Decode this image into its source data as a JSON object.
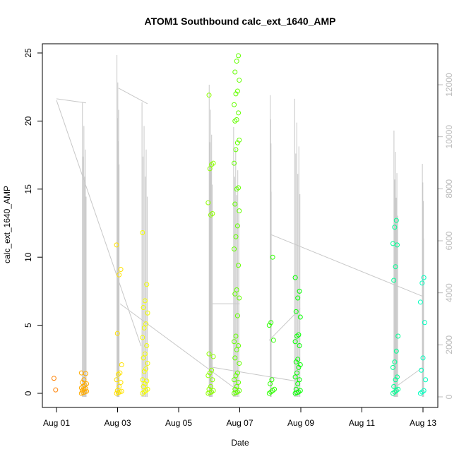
{
  "chart_data": {
    "type": "scatter",
    "title": "ATOM1 Southbound calc_ext_1640_AMP",
    "xlabel": "Date",
    "ylabel": "calc_ext_1640_AMP",
    "xlim_day_of_august": [
      0.55,
      13.35
    ],
    "ylim": [
      -0.8,
      25.5
    ],
    "y2lim": [
      -300,
      13500
    ],
    "x_ticks": [
      {
        "day": 1,
        "label": "Aug 01"
      },
      {
        "day": 3,
        "label": "Aug 03"
      },
      {
        "day": 5,
        "label": "Aug 05"
      },
      {
        "day": 7,
        "label": "Aug 07"
      },
      {
        "day": 9,
        "label": "Aug 09"
      },
      {
        "day": 11,
        "label": "Aug 11"
      },
      {
        "day": 13,
        "label": "Aug 13"
      }
    ],
    "y_ticks": [
      "0",
      "5",
      "10",
      "15",
      "20",
      "25"
    ],
    "y2_ticks": [
      "0",
      "2000",
      "4000",
      "6000",
      "8000",
      "10000",
      "12000"
    ],
    "grid": false,
    "legend": "none",
    "point_colors": "rainbow by time, orange (Aug 01) to cyan (Aug 13)",
    "line_color": "#c8c8c8",
    "point_groups": [
      {
        "day": 1.0,
        "values": [
          1.1,
          0.25
        ]
      },
      {
        "day": 1.9,
        "values": [
          0,
          0.05,
          0.1,
          0.15,
          0.2,
          0.3,
          0.35,
          0.4,
          0.5,
          0.6,
          0.7,
          0.8,
          1.0,
          1.45,
          1.5
        ]
      },
      {
        "day": 3.05,
        "values": [
          0,
          0.05,
          0.1,
          0.15,
          0.2,
          0.5,
          0.8,
          1.0,
          1.4,
          1.5,
          2.1,
          4.4,
          8.7,
          9.1,
          10.9
        ]
      },
      {
        "day": 3.9,
        "values": [
          0,
          0.1,
          0.2,
          0.3,
          0.5,
          0.7,
          0.9,
          1.0,
          1.6,
          1.8,
          2.2,
          2.6,
          2.9,
          3.5,
          4.1,
          4.8,
          5.1,
          5.9,
          6.3,
          6.8,
          8.0,
          11.8
        ]
      },
      {
        "day": 6.05,
        "values": [
          0,
          0.05,
          0.1,
          0.2,
          0.3,
          0.5,
          1.0,
          1.3,
          1.5,
          1.7,
          2.7,
          2.9,
          13.1,
          13.2,
          14.0,
          16.5,
          16.8,
          16.9,
          21.9
        ]
      },
      {
        "day": 6.9,
        "values": [
          0,
          0.05,
          0.1,
          0.2,
          0.3,
          0.5,
          0.8,
          1.0,
          1.3,
          1.5,
          2.2,
          2.6,
          3.2,
          3.5,
          3.8,
          4.2,
          5.7,
          7.0,
          7.3,
          7.6,
          9.4,
          10.6,
          11.5,
          12.3,
          13.4,
          13.9,
          15.0,
          15.1,
          16.9,
          17.9,
          18.4,
          18.6,
          20.0,
          20.1,
          20.6,
          21.2,
          22.0,
          22.2,
          23.0,
          23.6,
          24.4,
          24.8
        ]
      },
      {
        "day": 8.05,
        "values": [
          0,
          0.1,
          0.2,
          0.3,
          0.7,
          1.0,
          3.9,
          5.0,
          5.2,
          10.0
        ]
      },
      {
        "day": 8.9,
        "values": [
          0,
          0.05,
          0.1,
          0.2,
          0.3,
          0.7,
          1.0,
          1.2,
          1.5,
          1.9,
          2.1,
          2.3,
          2.5,
          3.5,
          3.8,
          4.2,
          4.3,
          5.6,
          6.0,
          7.0,
          7.5,
          8.5
        ]
      },
      {
        "day": 12.1,
        "values": [
          0,
          0.1,
          0.2,
          0.3,
          0.5,
          1.0,
          1.2,
          1.9,
          2.3,
          3.1,
          4.2,
          8.3,
          9.3,
          10.9,
          11.0,
          12.2,
          12.7
        ]
      },
      {
        "day": 13.0,
        "values": [
          0,
          0.1,
          0.2,
          1.0,
          1.7,
          2.6,
          5.2,
          6.7,
          8.1,
          8.5
        ]
      }
    ],
    "line_spikes_right_axis": [
      {
        "day_from": 1.85,
        "day_to": 1.97,
        "top": 11320,
        "bottom": 0
      },
      {
        "day_from": 2.98,
        "day_to": 3.05,
        "top": 13140,
        "bottom": 0
      },
      {
        "day_from": 3.8,
        "day_to": 3.97,
        "top": 11320,
        "bottom": 0
      },
      {
        "day_from": 6.0,
        "day_to": 6.1,
        "top": 12000,
        "bottom": 0
      },
      {
        "day_from": 6.8,
        "day_to": 6.97,
        "top": 10370,
        "bottom": 0
      },
      {
        "day_from": 8.0,
        "day_to": 8.03,
        "top": 11600,
        "bottom": 0
      },
      {
        "day_from": 8.8,
        "day_to": 8.97,
        "top": 11460,
        "bottom": 0
      },
      {
        "day_from": 12.05,
        "day_to": 12.17,
        "top": 10240,
        "bottom": 0
      },
      {
        "day_from": 12.98,
        "day_to": 13.02,
        "top": 8960,
        "bottom": 0
      }
    ],
    "line_segments_right_axis": [
      [
        [
          1.0,
          11460
        ],
        [
          1.97,
          11300
        ]
      ],
      [
        [
          1.0,
          11400
        ],
        [
          3.77,
          1950
        ]
      ],
      [
        [
          3.03,
          11870
        ],
        [
          3.98,
          11270
        ]
      ],
      [
        [
          3.08,
          3580
        ],
        [
          6.78,
          380
        ]
      ],
      [
        [
          6.09,
          1140
        ],
        [
          8.86,
          600
        ]
      ],
      [
        [
          8.0,
          6250
        ],
        [
          13.0,
          3860
        ]
      ],
      [
        [
          7.96,
          2170
        ],
        [
          8.98,
          3390
        ]
      ],
      [
        [
          12.1,
          380
        ],
        [
          13.0,
          1140
        ]
      ],
      [
        [
          6.09,
          3580
        ],
        [
          7.0,
          3580
        ]
      ]
    ]
  }
}
